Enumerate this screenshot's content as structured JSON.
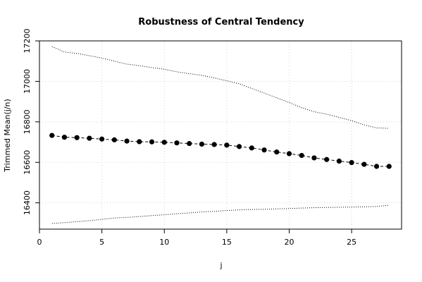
{
  "chart_data": {
    "type": "line",
    "title": "Robustness of Central Tendency",
    "xlabel": "j",
    "ylabel": "Trimmed Mean(j/n)",
    "xlim": [
      0,
      29
    ],
    "ylim": [
      16270,
      17200
    ],
    "x_ticks": [
      0,
      5,
      10,
      15,
      20,
      25
    ],
    "y_ticks": [
      16400,
      16600,
      16800,
      17000,
      17200
    ],
    "grid": true,
    "colors": {
      "series": "#000000",
      "grid": "#d3d3d3"
    },
    "x": [
      1,
      2,
      3,
      4,
      5,
      6,
      7,
      8,
      9,
      10,
      11,
      12,
      13,
      14,
      15,
      16,
      17,
      18,
      19,
      20,
      21,
      22,
      23,
      24,
      25,
      26,
      27,
      28
    ],
    "series": [
      {
        "name": "",
        "style": "points-dashed",
        "values": [
          16733,
          16724,
          16722,
          16719,
          16715,
          16711,
          16705,
          16702,
          16701,
          16699,
          16696,
          16693,
          16690,
          16688,
          16685,
          16678,
          16671,
          16661,
          16651,
          16643,
          16634,
          16622,
          16614,
          16606,
          16599,
          16590,
          16580,
          16580
        ]
      },
      {
        "name": "",
        "style": "dotted",
        "values": [
          17172,
          17145,
          17138,
          17127,
          17115,
          17100,
          17085,
          17078,
          17068,
          17060,
          17047,
          17038,
          17030,
          17017,
          17003,
          16988,
          16965,
          16942,
          16919,
          16896,
          16870,
          16850,
          16838,
          16822,
          16806,
          16785,
          16770,
          16768
        ]
      },
      {
        "name": "",
        "style": "dotted",
        "values": [
          16298,
          16302,
          16307,
          16312,
          16318,
          16325,
          16328,
          16332,
          16337,
          16341,
          16346,
          16350,
          16355,
          16358,
          16362,
          16365,
          16367,
          16368,
          16370,
          16372,
          16374,
          16376,
          16377,
          16378,
          16379,
          16380,
          16382,
          16388
        ]
      }
    ]
  }
}
